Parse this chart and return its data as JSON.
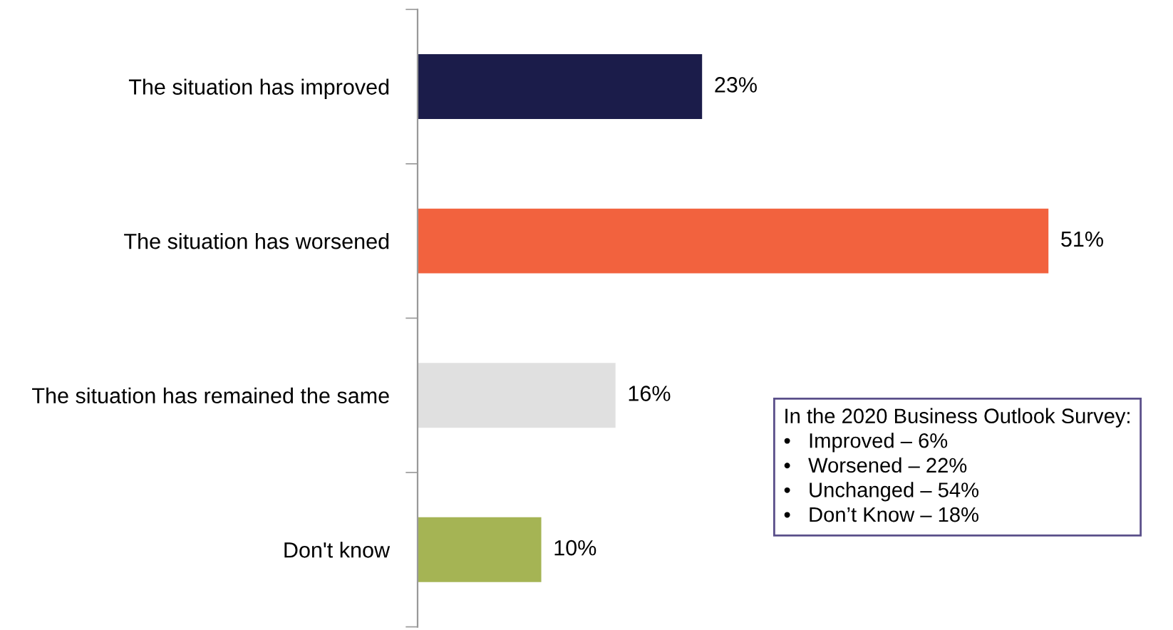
{
  "chart_data": {
    "type": "bar",
    "orientation": "horizontal",
    "categories": [
      "The situation has improved",
      "The situation has worsened",
      "The situation has remained the same",
      "Don't know"
    ],
    "values": [
      23,
      51,
      16,
      10
    ],
    "colors": [
      "#1b1c4a",
      "#f2623e",
      "#e0e0e0",
      "#a5b454"
    ],
    "value_labels": [
      "23%",
      "51%",
      "16%",
      "10%"
    ],
    "annotations": [
      "In the 2020 Business Outlook Survey:\n•   Improved – 6%\n•   Worsened – 22%\n•   Unchanged – 54%\n•   Don’t Know – 18%"
    ],
    "grid": false,
    "legend": false
  }
}
